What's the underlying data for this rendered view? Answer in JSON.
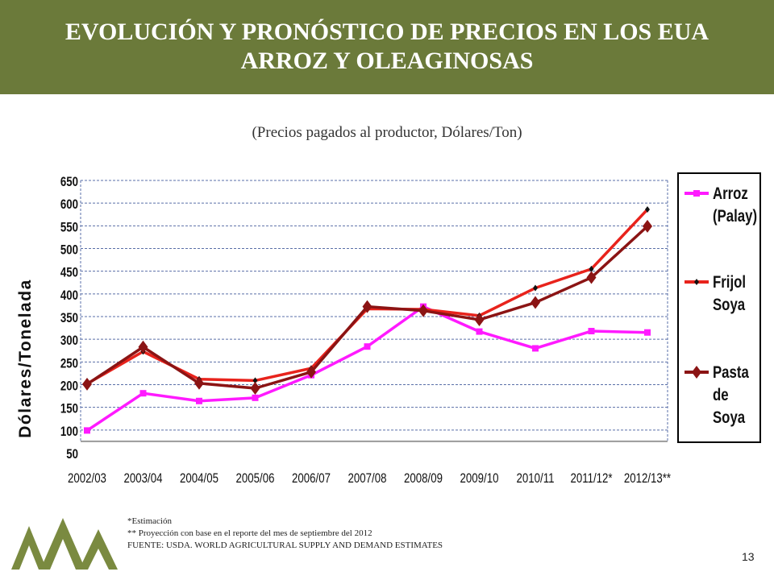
{
  "header": {
    "title_line1": "EVOLUCIÓN Y PRONÓSTICO DE PRECIOS EN LOS EUA",
    "title_line2": "ARROZ Y OLEAGINOSAS",
    "subtitle": "(Precios pagados al productor, Dólares/Ton)",
    "background_color": "#6b7a3a"
  },
  "notes": {
    "line1": "*Estimación",
    "line2": "** Proyección con base en el reporte  del mes de septiembre del 2012",
    "line3": "FUENTE: USDA. WORLD AGRICULTURAL SUPPLY AND DEMAND ESTIMATES"
  },
  "page_number": "13",
  "logo": {
    "icon": "mountains-logo-icon",
    "color": "#7a8a40"
  },
  "chart_data": {
    "type": "line",
    "title": "",
    "xlabel": "",
    "ylabel": "Dólares/Tonelada",
    "categories": [
      "2002/03",
      "2003/04",
      "2004/05",
      "2005/06",
      "2006/07",
      "2007/08",
      "2008/09",
      "2009/10",
      "2010/11",
      "2011/12*",
      "2012/13**"
    ],
    "ylim": [
      50,
      650
    ],
    "yticks": [
      50,
      100,
      150,
      200,
      250,
      300,
      350,
      400,
      450,
      500,
      550,
      600,
      650
    ],
    "grid": true,
    "legend_position": "right",
    "series": [
      {
        "name": "Arroz (Palay)",
        "legend_lines": [
          "Arroz",
          "(Palay)"
        ],
        "color": "#ff1aff",
        "marker": "square",
        "values": [
          99,
          181,
          164,
          171,
          221,
          284,
          372,
          317,
          280,
          318,
          315
        ]
      },
      {
        "name": "Frijol Soya",
        "legend_lines": [
          "Frijol",
          "Soya"
        ],
        "color": "#e8231c",
        "marker": "dot",
        "values": [
          202,
          273,
          212,
          209,
          236,
          367,
          366,
          352,
          413,
          455,
          586
        ]
      },
      {
        "name": "Pasta de Soya",
        "legend_lines": [
          "Pasta",
          "de",
          "Soya"
        ],
        "color": "#8b1414",
        "marker": "diamond",
        "values": [
          201,
          283,
          203,
          192,
          228,
          372,
          363,
          343,
          381,
          436,
          549
        ]
      }
    ]
  }
}
